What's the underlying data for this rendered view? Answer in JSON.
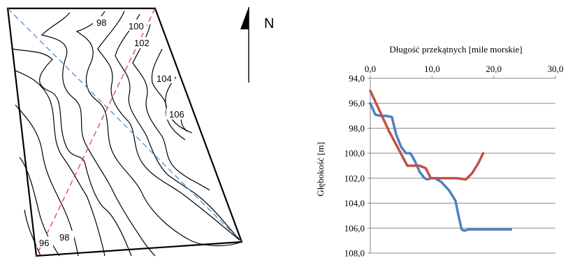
{
  "map": {
    "north_label": "N",
    "contour_labels": [
      "96",
      "98",
      "98",
      "100",
      "102",
      "104",
      "106"
    ]
  },
  "chart_data": {
    "type": "line",
    "xlabel": "Długość przekątnych [mile morskie]",
    "ylabel": "Głębokość [m]",
    "xlim": [
      0,
      30
    ],
    "ylim": [
      94,
      108
    ],
    "y_inverted": true,
    "x_axis_position": "top",
    "x_ticks": [
      "0,0",
      "10,0",
      "20,0",
      "30,0"
    ],
    "y_ticks": [
      "94,0",
      "96,0",
      "98,0",
      "100,0",
      "102,0",
      "104,0",
      "106,0",
      "108,0"
    ],
    "grid": "horizontal",
    "legend": "none",
    "series": [
      {
        "color": "#4f81bd",
        "x": [
          0,
          0.8,
          1.5,
          2.5,
          3.5,
          4.2,
          5.0,
          5.8,
          6.5,
          7.2,
          8.0,
          8.8,
          9.3,
          9.8,
          10.5,
          11.5,
          12.8,
          13.8,
          14.3,
          14.8,
          15.2,
          16.0,
          18.0,
          20.0,
          22.8
        ],
        "y": [
          96.0,
          96.9,
          97.0,
          97.0,
          97.1,
          98.5,
          99.5,
          100.0,
          100.0,
          100.6,
          101.5,
          102.0,
          102.1,
          102.0,
          102.0,
          102.3,
          103.0,
          103.8,
          105.0,
          106.1,
          106.2,
          106.1,
          106.1,
          106.1,
          106.1
        ]
      },
      {
        "color": "#c0504d",
        "x": [
          0,
          1.5,
          3.0,
          4.5,
          6.0,
          7.0,
          8.0,
          9.0,
          9.8,
          10.5,
          12.0,
          14.0,
          15.5,
          16.5,
          17.5,
          18.3
        ],
        "y": [
          95.0,
          96.6,
          98.2,
          99.6,
          101.0,
          101.0,
          101.0,
          101.2,
          102.0,
          102.0,
          102.0,
          102.0,
          102.1,
          101.6,
          100.8,
          100.0
        ]
      }
    ]
  }
}
